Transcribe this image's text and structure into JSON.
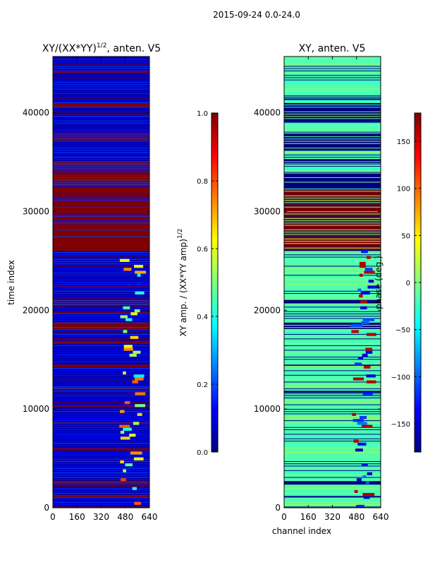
{
  "suptitle": "2015-09-24 0.0-24.0",
  "colors": {
    "jet": [
      "#00007f",
      "#0000ff",
      "#007fff",
      "#00ffff",
      "#7fff7f",
      "#ffff00",
      "#ff7f00",
      "#ff0000",
      "#7f0000"
    ],
    "frame": "#000000",
    "background": "#ffffff"
  },
  "chart_data": [
    {
      "type": "heatmap",
      "title": "XY/(XX*YY)^1/2, anten. V5",
      "xlabel": "",
      "ylabel": "time index",
      "xlim": [
        0,
        640
      ],
      "ylim": [
        0,
        45700
      ],
      "xticks": [
        0,
        160,
        320,
        480,
        640
      ],
      "yticks": [
        0,
        10000,
        20000,
        30000,
        40000
      ],
      "colormap": "jet",
      "colorbar": {
        "label": "XY amp. / (XX*YY amp)^1/2",
        "range": [
          0.0,
          1.0
        ],
        "ticks": [
          "0.0",
          "0.2",
          "0.4",
          "0.6",
          "0.8",
          "1.0"
        ]
      },
      "background_value": 0.05,
      "bands": [
        {
          "from": 26000,
          "to": 35000,
          "value": 1.0
        },
        {
          "from": 18100,
          "to": 18800,
          "value": 1.0
        },
        {
          "from": 20600,
          "to": 21000,
          "value": 1.0
        },
        {
          "from": 2300,
          "to": 2700,
          "value": 1.0
        },
        {
          "from": 1000,
          "to": 1300,
          "value": 1.0
        },
        {
          "from": 37200,
          "to": 38000,
          "value": 1.0
        },
        {
          "from": 40600,
          "to": 41000,
          "value": 1.0
        },
        {
          "from": 44000,
          "to": 44300,
          "value": 1.0
        },
        {
          "from": 12000,
          "to": 12300,
          "value": 1.0
        },
        {
          "from": 14200,
          "to": 14500,
          "value": 1.0
        },
        {
          "from": 16600,
          "to": 16900,
          "value": 1.0
        },
        {
          "from": 19600,
          "to": 19800,
          "value": 1.0
        },
        {
          "from": 22300,
          "to": 22500,
          "value": 1.0
        },
        {
          "from": 5900,
          "to": 6100,
          "value": 1.0
        },
        {
          "from": 8500,
          "to": 8700,
          "value": 1.0
        },
        {
          "from": 10200,
          "to": 10400,
          "value": 1.0
        }
      ]
    },
    {
      "type": "heatmap",
      "title": "XY, anten. V5",
      "xlabel": "channel index",
      "ylabel": "",
      "xlim": [
        0,
        640
      ],
      "ylim": [
        0,
        45700
      ],
      "xticks": [
        0,
        160,
        320,
        480,
        640
      ],
      "yticks": [
        0,
        10000,
        20000,
        30000,
        40000
      ],
      "colormap": "jet",
      "colorbar": {
        "label": "phase (deg.)",
        "range": [
          -180,
          180
        ],
        "ticks": [
          "−150",
          "−100",
          "−50",
          "0",
          "50",
          "100",
          "150"
        ]
      },
      "background_value": 0.45,
      "bands": [
        {
          "from": 26000,
          "to": 32300,
          "value": 1.0
        },
        {
          "from": 32300,
          "to": 34000,
          "value": 0.0
        },
        {
          "from": 34900,
          "to": 35300,
          "value": 0.0
        },
        {
          "from": 36200,
          "to": 37900,
          "value": 0.0
        },
        {
          "from": 39000,
          "to": 41000,
          "value": 0.0
        },
        {
          "from": 41300,
          "to": 41600,
          "value": 0.0
        },
        {
          "from": 18100,
          "to": 18700,
          "value": 0.0
        },
        {
          "from": 20700,
          "to": 21000,
          "value": 0.0
        },
        {
          "from": 2400,
          "to": 2700,
          "value": 0.0
        },
        {
          "from": 1000,
          "to": 1200,
          "value": 0.0
        },
        {
          "from": 11500,
          "to": 11800,
          "value": 0.0
        },
        {
          "from": 14300,
          "to": 14500,
          "value": 0.0
        }
      ]
    }
  ]
}
